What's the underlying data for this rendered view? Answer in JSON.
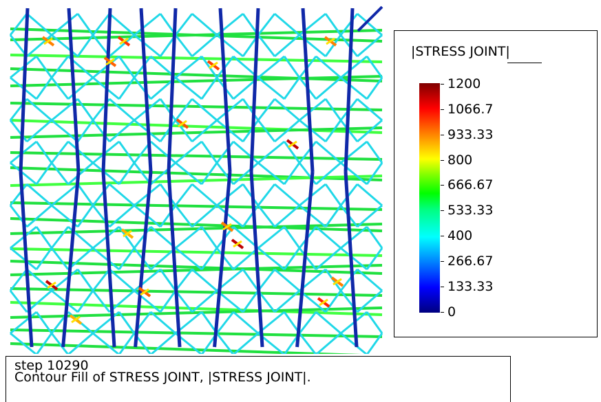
{
  "legend": {
    "title": "|STRESS JOINT|",
    "ticks": [
      "1200",
      "1066.7",
      "933.33",
      "800",
      "666.67",
      "533.33",
      "400",
      "266.67",
      "133.33",
      "0"
    ]
  },
  "caption": {
    "step": "step 10290",
    "description": "Contour Fill of STRESS JOINT, |STRESS JOINT|."
  },
  "colors": {
    "low": "#00007f",
    "mid_low": "#00ffff",
    "mid": "#00ff00",
    "mid_high": "#ffff00",
    "high": "#7f0000"
  }
}
